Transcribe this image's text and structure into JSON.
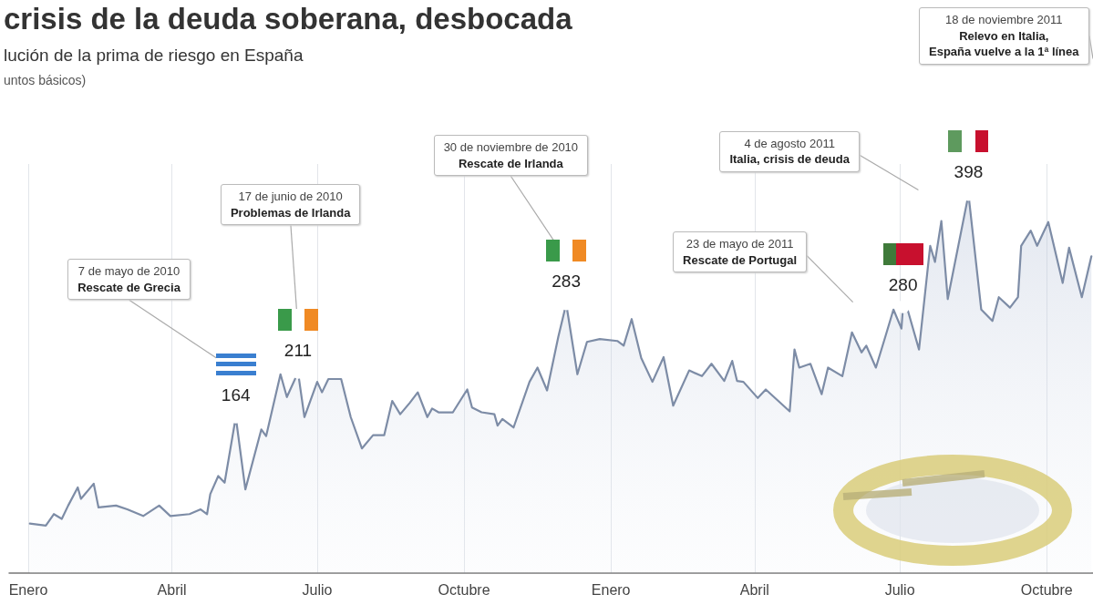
{
  "chart_data": {
    "type": "area",
    "title": "crisis de la deuda soberana, desbocada",
    "subtitle": "lución de la prima de riesgo en España",
    "x": [
      "2010-01-02",
      "2010-01-12",
      "2010-01-17",
      "2010-01-22",
      "2010-01-26",
      "2010-02-01",
      "2010-02-03",
      "2010-02-11",
      "2010-02-14",
      "2010-02-25",
      "2010-03-04",
      "2010-03-14",
      "2010-03-24",
      "2010-03-31",
      "2010-04-12",
      "2010-04-19",
      "2010-04-23",
      "2010-04-25",
      "2010-04-30",
      "2010-05-04",
      "2010-05-11",
      "2010-05-17",
      "2010-05-27",
      "2010-05-30",
      "2010-06-08",
      "2010-06-12",
      "2010-06-19",
      "2010-06-23",
      "2010-07-01",
      "2010-07-04",
      "2010-07-08",
      "2010-07-16",
      "2010-07-22",
      "2010-07-29",
      "2010-08-05",
      "2010-08-12",
      "2010-08-17",
      "2010-08-22",
      "2010-08-28",
      "2010-09-02",
      "2010-09-08",
      "2010-09-11",
      "2010-09-15",
      "2010-09-24",
      "2010-10-03",
      "2010-10-06",
      "2010-10-12",
      "2010-10-20",
      "2010-10-22",
      "2010-10-25",
      "2010-11-01",
      "2010-11-11",
      "2010-11-16",
      "2010-11-22",
      "2010-11-29",
      "2010-12-04",
      "2010-12-11",
      "2010-12-17",
      "2010-12-25",
      "2011-01-05",
      "2011-01-09",
      "2011-01-14",
      "2011-01-20",
      "2011-01-27",
      "2011-02-03",
      "2011-02-09",
      "2011-02-19",
      "2011-02-27",
      "2011-03-05",
      "2011-03-13",
      "2011-03-18",
      "2011-03-21",
      "2011-03-25",
      "2011-04-03",
      "2011-04-08",
      "2011-04-23",
      "2011-04-26",
      "2011-04-29",
      "2011-05-06",
      "2011-05-13",
      "2011-05-17",
      "2011-05-26",
      "2011-06-01",
      "2011-06-07",
      "2011-06-10",
      "2011-06-16",
      "2011-06-22",
      "2011-06-27",
      "2011-07-02",
      "2011-07-03",
      "2011-07-06",
      "2011-07-13",
      "2011-07-20",
      "2011-07-23",
      "2011-07-27",
      "2011-07-31",
      "2011-08-13",
      "2011-08-21",
      "2011-08-28",
      "2011-09-01",
      "2011-09-08",
      "2011-09-13",
      "2011-09-15",
      "2011-09-21",
      "2011-09-25",
      "2011-10-02",
      "2011-10-11",
      "2011-10-15",
      "2011-10-23",
      "2011-10-29"
    ],
    "values": [
      52,
      50,
      62,
      57,
      71,
      90,
      78,
      94,
      69,
      71,
      67,
      60,
      71,
      60,
      62,
      67,
      62,
      83,
      102,
      95,
      164,
      88,
      151,
      144,
      209,
      185,
      211,
      164,
      201,
      190,
      204,
      204,
      164,
      131,
      145,
      145,
      181,
      167,
      179,
      190,
      164,
      173,
      169,
      169,
      193,
      174,
      169,
      167,
      155,
      162,
      153,
      201,
      216,
      192,
      248,
      283,
      209,
      243,
      246,
      244,
      239,
      267,
      226,
      201,
      227,
      176,
      213,
      207,
      220,
      202,
      223,
      202,
      201,
      184,
      193,
      170,
      235,
      216,
      220,
      188,
      216,
      207,
      253,
      232,
      239,
      216,
      249,
      277,
      257,
      280,
      276,
      235,
      344,
      327,
      370,
      288,
      398,
      277,
      265,
      290,
      279,
      290,
      344,
      360,
      344,
      369,
      305,
      342,
      290,
      333
    ],
    "value_labels": [
      null,
      null,
      null,
      null,
      null,
      null,
      null,
      null,
      null,
      null,
      null,
      null,
      null,
      null,
      null,
      null,
      null,
      null,
      null,
      null,
      "164",
      null,
      null,
      null,
      null,
      null,
      "211",
      null,
      null,
      null,
      null,
      null,
      null,
      null,
      null,
      null,
      null,
      null,
      null,
      null,
      null,
      null,
      null,
      null,
      null,
      null,
      null,
      null,
      null,
      null,
      null,
      null,
      null,
      null,
      null,
      "283",
      null,
      null,
      null,
      null,
      null,
      null,
      null,
      null,
      null,
      null,
      null,
      null,
      null,
      null,
      null,
      null,
      null,
      null,
      null,
      null,
      null,
      null,
      null,
      null,
      null,
      null,
      null,
      null,
      null,
      null,
      null,
      null,
      null,
      "280",
      null,
      null,
      null,
      null,
      null,
      null,
      "398",
      null,
      null,
      null,
      null,
      null,
      null,
      null,
      null,
      null,
      null,
      null,
      null,
      null
    ],
    "color": "#7d8ca6",
    "xlim": [
      "2009-12-20",
      "2011-10-30"
    ],
    "ylim": [
      0,
      430
    ],
    "xticks": [
      {
        "value": "2010-01-01",
        "label": "Enero"
      },
      {
        "value": "2010-04-01",
        "label": "Abril"
      },
      {
        "value": "2010-07-01",
        "label": "Julio"
      },
      {
        "value": "2010-10-01",
        "label": "Octubre"
      },
      {
        "value": "2011-01-01",
        "label": "Enero"
      },
      {
        "value": "2011-04-01",
        "label": "Abril"
      },
      {
        "value": "2011-07-01",
        "label": "Julio"
      },
      {
        "value": "2011-10-01",
        "label": "Octubre"
      }
    ],
    "tick_labels": "x",
    "grid": "x",
    "line_style": "solid",
    "annotations": [
      "7 de mayo de 2010\nRescate de Grecia",
      "17 de junio de 2010\nProblemas de Irlanda",
      "30 de noviembre de 2010\nRescate de Irlanda",
      "23 de mayo de 2011\nRescate de Portugal",
      "4 de agosto 2011\nItalia, crisis de deuda",
      "18 de noviembre 2011\nRelevo en Italia,\nEspaña vuelve a la 1ª línea",
      "untos básicos)"
    ]
  }
}
